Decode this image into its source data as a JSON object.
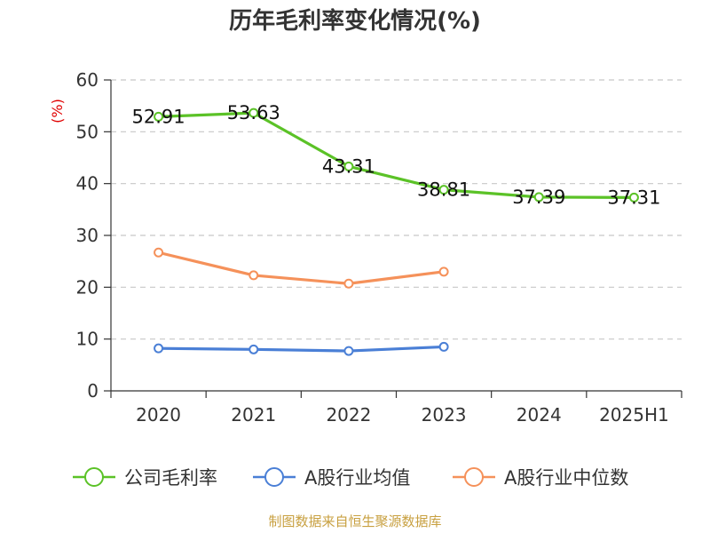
{
  "chart_data": {
    "type": "line",
    "title": "历年毛利率变化情况(%)",
    "ylabel": "(%)",
    "xlabel": "",
    "categories": [
      "2020",
      "2021",
      "2022",
      "2023",
      "2024",
      "2025H1"
    ],
    "ylim": [
      0,
      60
    ],
    "yticks": [
      0,
      10,
      20,
      30,
      40,
      50,
      60
    ],
    "grid": true,
    "legend_position": "bottom",
    "series": [
      {
        "name": "公司毛利率",
        "color": "#5bc227",
        "values": [
          52.91,
          53.63,
          43.31,
          38.81,
          37.39,
          37.31
        ],
        "labels": [
          "52.91",
          "53.63",
          "43.31",
          "38.81",
          "37.39",
          "37.31"
        ]
      },
      {
        "name": "A股行业均值",
        "color": "#4a7fd6",
        "values": [
          8.2,
          8.0,
          7.7,
          8.5,
          null,
          null
        ]
      },
      {
        "name": "A股行业中位数",
        "color": "#f5915a",
        "values": [
          26.7,
          22.3,
          20.7,
          23.0,
          null,
          null
        ]
      }
    ]
  },
  "source_note": "制图数据来自恒生聚源数据库"
}
